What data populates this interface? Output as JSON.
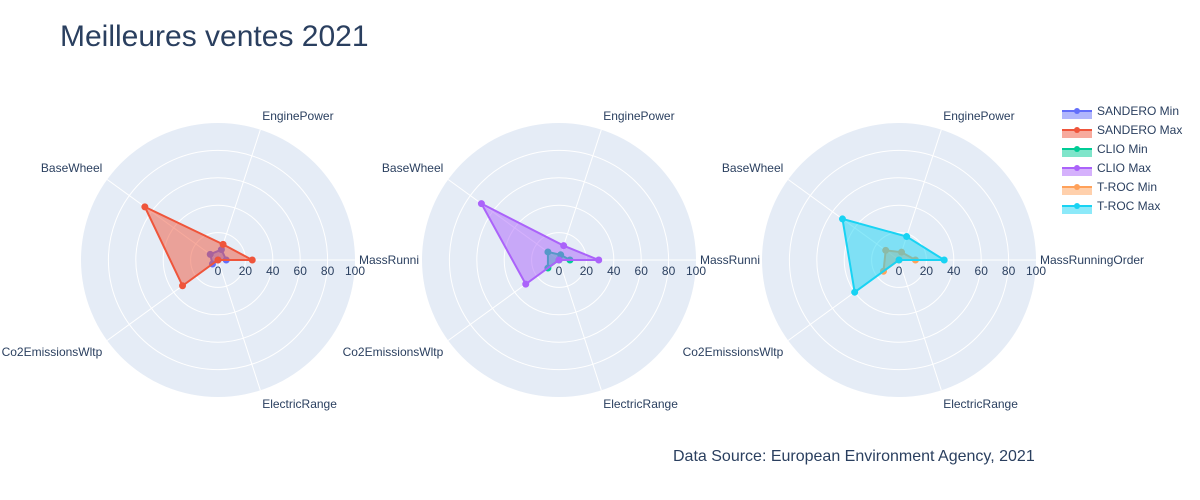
{
  "title": "Meilleures ventes 2021",
  "source_note": "Data Source: European Environment Agency, 2021",
  "chart_data": [
    {
      "type": "radar",
      "axes": [
        "MassRunningOrder",
        "EnginePower",
        "BaseWheel",
        "Co2EmissionsWltp",
        "ElectricRange"
      ],
      "axis_label_display": [
        "MassRunni",
        "EnginePower",
        "BaseWheel",
        "Co2EmissionsWltp",
        "ElectricRange"
      ],
      "radial_range": [
        0,
        100
      ],
      "radial_ticks": [
        "0",
        "20",
        "40",
        "60",
        "80",
        "100"
      ],
      "series": [
        {
          "name": "SANDERO Min",
          "color": "#636efa",
          "values": [
            6,
            8,
            7,
            5,
            0
          ]
        },
        {
          "name": "SANDERO Max",
          "color": "#ef553b",
          "values": [
            25,
            12,
            66,
            32,
            0
          ]
        }
      ]
    },
    {
      "type": "radar",
      "axes": [
        "MassRunningOrder",
        "EnginePower",
        "BaseWheel",
        "Co2EmissionsWltp",
        "ElectricRange"
      ],
      "axis_label_display": [
        "MassRunni",
        "EnginePower",
        "BaseWheel",
        "Co2EmissionsWltp",
        "ElectricRange"
      ],
      "radial_range": [
        0,
        100
      ],
      "radial_ticks": [
        "0",
        "20",
        "40",
        "60",
        "80",
        "100"
      ],
      "series": [
        {
          "name": "CLIO Min",
          "color": "#00cc96",
          "values": [
            8,
            4,
            10,
            10,
            0
          ]
        },
        {
          "name": "CLIO Max",
          "color": "#ab63fa",
          "values": [
            29,
            11,
            70,
            30,
            0
          ]
        }
      ]
    },
    {
      "type": "radar",
      "axes": [
        "MassRunningOrder",
        "EnginePower",
        "BaseWheel",
        "Co2EmissionsWltp",
        "ElectricRange"
      ],
      "axis_label_display": [
        "MassRunningOrder",
        "EnginePower",
        "BaseWheel",
        "Co2EmissionsWltp",
        "ElectricRange"
      ],
      "radial_range": [
        0,
        100
      ],
      "radial_ticks": [
        "0",
        "20",
        "40",
        "60",
        "80",
        "100"
      ],
      "series": [
        {
          "name": "T-ROC Min",
          "color": "#ffa15a",
          "values": [
            12,
            6,
            12,
            14,
            0
          ]
        },
        {
          "name": "T-ROC Max",
          "color": "#19d3f3",
          "values": [
            33,
            18,
            51,
            40,
            0
          ]
        }
      ]
    }
  ],
  "legend": {
    "placement": "top-right",
    "entries": [
      {
        "name": "SANDERO Min",
        "color": "#636efa"
      },
      {
        "name": "SANDERO Max",
        "color": "#ef553b"
      },
      {
        "name": "CLIO Min",
        "color": "#00cc96"
      },
      {
        "name": "CLIO Max",
        "color": "#ab63fa"
      },
      {
        "name": "T-ROC Min",
        "color": "#ffa15a"
      },
      {
        "name": "T-ROC Max",
        "color": "#19d3f3"
      }
    ]
  }
}
